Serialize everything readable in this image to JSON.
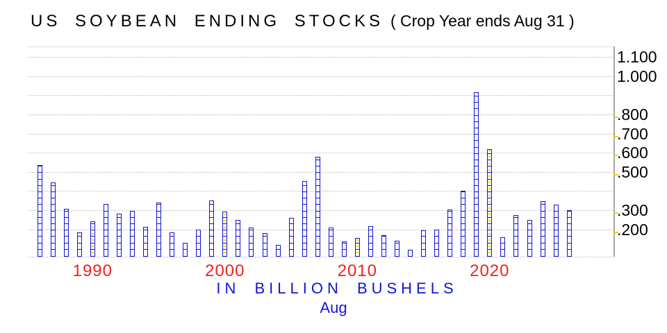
{
  "title": {
    "main": "US SOYBEAN ENDING STOCKS",
    "paren": "( Crop Year ends Aug 31 )"
  },
  "footer": {
    "units_label": "IN BILLION BUSHELS",
    "month_label": "Aug"
  },
  "colors": {
    "accent_blue": "#1414d2",
    "tick_red": "#ee2222",
    "gridline_gray": "#b9b9b9",
    "axis_gray": "#a8a8a8",
    "marker_yellow": "#f2d400",
    "bar_fill": "#f7f8ff"
  },
  "chart_data": {
    "type": "bar",
    "title": "US SOYBEAN ENDING STOCKS ( Crop Year ends Aug 31 )",
    "xlabel": "IN BILLION BUSHELS",
    "x_sublabel": "Aug",
    "ylabel": "",
    "unit": "billion bushels",
    "ylim": [
      0.057,
      1.155
    ],
    "grid": "dotted-horizontal",
    "legend_position": "none",
    "years": [
      1986,
      1987,
      1988,
      1989,
      1990,
      1991,
      1992,
      1993,
      1994,
      1995,
      1996,
      1997,
      1998,
      1999,
      2000,
      2001,
      2002,
      2003,
      2004,
      2005,
      2006,
      2007,
      2008,
      2009,
      2010,
      2011,
      2012,
      2013,
      2014,
      2015,
      2016,
      2017,
      2018,
      2019,
      2020,
      2021,
      2022,
      2023,
      2024,
      2025,
      2026
    ],
    "values": [
      0.536,
      0.443,
      0.306,
      0.185,
      0.242,
      0.331,
      0.28,
      0.295,
      0.214,
      0.339,
      0.185,
      0.131,
      0.2,
      0.349,
      0.293,
      0.248,
      0.208,
      0.179,
      0.118,
      0.259,
      0.451,
      0.578,
      0.208,
      0.138,
      0.154,
      0.215,
      0.17,
      0.141,
      0.093,
      0.195,
      0.2,
      0.304,
      0.401,
      0.915,
      0.618,
      0.158,
      0.275,
      0.25,
      0.346,
      0.328,
      0.3
    ],
    "gridline_values": [
      0.2,
      0.3,
      0.4,
      0.5,
      0.6,
      0.7,
      0.8,
      0.9,
      1.0,
      1.1
    ],
    "y_ticks": [
      {
        "label": "1.100",
        "value": 1.1
      },
      {
        "label": "1.000",
        "value": 1.0
      },
      {
        "label": ".800",
        "value": 0.8
      },
      {
        "label": ".700",
        "value": 0.7
      },
      {
        "label": ".600",
        "value": 0.6
      },
      {
        "label": ".500",
        "value": 0.5
      },
      {
        "label": ".300",
        "value": 0.3
      },
      {
        "label": ".200",
        "value": 0.2
      }
    ],
    "month_tick_values": [
      0.8,
      0.7,
      0.6,
      0.5,
      0.3,
      0.2
    ],
    "x_ticks": [
      {
        "label": "1990",
        "year": 1990
      },
      {
        "label": "2000",
        "year": 2000
      },
      {
        "label": "2010",
        "year": 2010
      },
      {
        "label": "2020",
        "year": 2020
      }
    ],
    "decade_marker_years": [
      1990,
      2000,
      2010,
      2020
    ]
  }
}
